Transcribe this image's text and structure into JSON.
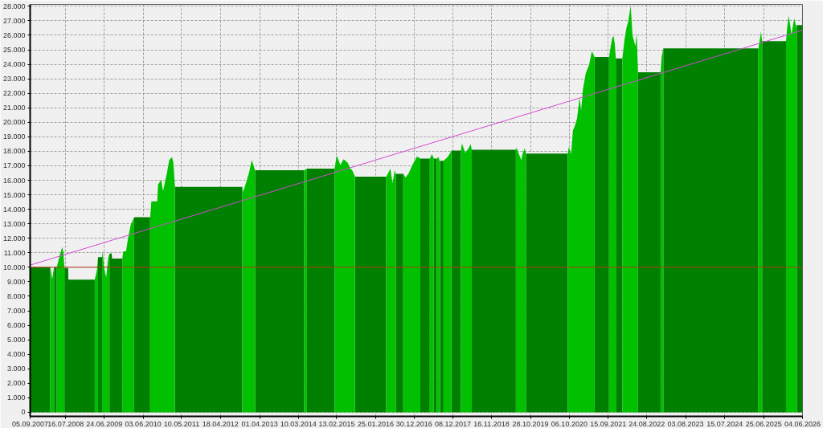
{
  "chart_data": {
    "type": "area",
    "x": [
      "2007-09-05",
      "2008-03-02",
      "2008-03-19",
      "2008-04-04",
      "2008-04-16",
      "2008-04-28",
      "2008-05-14",
      "2008-05-28",
      "2008-06-16",
      "2008-06-26",
      "2008-07-05",
      "2008-08-07",
      "2008-08-09",
      "2009-03-31",
      "2009-04-19",
      "2009-04-29",
      "2009-05-17",
      "2009-06-04",
      "2009-06-09",
      "2009-06-21",
      "2009-07-10",
      "2009-07-27",
      "2009-08-08",
      "2009-08-28",
      "2009-08-31",
      "2009-11-30",
      "2009-12-09",
      "2010-01-02",
      "2010-01-20",
      "2010-02-12",
      "2010-03-15",
      "2010-06-01",
      "2010-08-04",
      "2010-08-15",
      "2010-10-06",
      "2010-10-13",
      "2010-11-10",
      "2010-11-26",
      "2010-12-11",
      "2011-01-02",
      "2011-01-20",
      "2011-02-14",
      "2011-02-26",
      "2011-03-12",
      "2012-01-01",
      "2012-10-29",
      "2012-11-05",
      "2012-12-08",
      "2012-12-30",
      "2013-01-20",
      "2013-02-03",
      "2013-02-19",
      "2013-09-01",
      "2014-05-01",
      "2014-05-13",
      "2014-05-25",
      "2014-09-15",
      "2015-01-25",
      "2015-02-13",
      "2015-03-17",
      "2015-04-15",
      "2015-05-21",
      "2015-06-14",
      "2015-06-30",
      "2015-07-25",
      "2015-12-01",
      "2016-04-27",
      "2016-05-14",
      "2016-06-02",
      "2016-06-22",
      "2016-07-11",
      "2016-07-20",
      "2016-08-22",
      "2016-09-25",
      "2016-10-15",
      "2016-11-13",
      "2016-12-05",
      "2017-01-01",
      "2017-01-24",
      "2017-02-23",
      "2017-04-05",
      "2017-05-18",
      "2017-06-06",
      "2017-06-23",
      "2017-07-06",
      "2017-07-19",
      "2017-08-05",
      "2017-08-12",
      "2017-08-17",
      "2017-09-01",
      "2017-09-17",
      "2017-10-16",
      "2017-11-04",
      "2017-11-26",
      "2018-01-07",
      "2018-02-18",
      "2018-02-27",
      "2018-03-28",
      "2018-04-26",
      "2018-05-15",
      "2018-05-25",
      "2018-12-01",
      "2019-06-20",
      "2019-06-27",
      "2019-07-17",
      "2019-08-07",
      "2019-08-21",
      "2019-09-07",
      "2019-09-17",
      "2020-03-01",
      "2020-09-22",
      "2020-10-02",
      "2020-10-21",
      "2020-11-07",
      "2020-11-24",
      "2020-12-13",
      "2021-01-06",
      "2021-01-18",
      "2021-02-04",
      "2021-02-28",
      "2021-03-31",
      "2021-04-24",
      "2021-05-18",
      "2021-07-20",
      "2021-09-23",
      "2021-10-09",
      "2021-10-21",
      "2021-11-02",
      "2021-11-13",
      "2021-11-22",
      "2021-12-20",
      "2022-01-19",
      "2022-02-07",
      "2022-02-24",
      "2022-03-13",
      "2022-04-03",
      "2022-04-19",
      "2022-05-14",
      "2022-05-26",
      "2022-06-07",
      "2022-09-15",
      "2022-12-24",
      "2023-01-02",
      "2023-01-17",
      "2024-03-15",
      "2025-05-09",
      "2025-06-01",
      "2025-06-11",
      "2025-09-10",
      "2026-01-09",
      "2026-01-20",
      "2026-02-02",
      "2026-02-13",
      "2026-02-26",
      "2026-03-22",
      "2026-04-10",
      "2026-04-14",
      "2026-06-04"
    ],
    "series": [
      {
        "color": "#008000",
        "values": [
          10000,
          10000,
          null,
          10000,
          10000,
          10000,
          null,
          null,
          null,
          null,
          9950,
          9950,
          9150,
          9150,
          null,
          10700,
          10700,
          10700,
          null,
          null,
          null,
          null,
          10950,
          10950,
          10600,
          10600,
          null,
          null,
          null,
          null,
          13450,
          13450,
          13450,
          null,
          null,
          null,
          null,
          null,
          null,
          null,
          null,
          null,
          null,
          15550,
          15550,
          15550,
          null,
          null,
          null,
          null,
          null,
          16700,
          16700,
          16700,
          null,
          16800,
          16800,
          16800,
          null,
          null,
          null,
          null,
          null,
          null,
          16250,
          16250,
          16250,
          null,
          null,
          null,
          null,
          16450,
          16450,
          16450,
          null,
          null,
          null,
          null,
          null,
          17500,
          17500,
          17500,
          null,
          17500,
          17500,
          17500,
          null,
          null,
          17350,
          17350,
          17350,
          null,
          null,
          18050,
          18050,
          18050,
          null,
          null,
          null,
          null,
          18100,
          18100,
          18100,
          null,
          null,
          null,
          null,
          null,
          17850,
          17850,
          17850,
          null,
          null,
          null,
          null,
          null,
          null,
          null,
          null,
          null,
          null,
          null,
          24500,
          24500,
          24500,
          null,
          null,
          null,
          null,
          24400,
          24400,
          24400,
          null,
          null,
          null,
          null,
          null,
          null,
          null,
          23450,
          23450,
          23450,
          null,
          25100,
          25100,
          25100,
          null,
          25600,
          25600,
          25600,
          null,
          null,
          null,
          null,
          null,
          null,
          26700,
          26700
        ]
      },
      {
        "color": "#00c000",
        "values": [
          null,
          10000,
          9200,
          10000,
          null,
          10000,
          10500,
          10900,
          11400,
          11000,
          9950,
          null,
          null,
          9150,
          9800,
          10700,
          null,
          10700,
          11100,
          10000,
          9300,
          10600,
          10950,
          null,
          null,
          10600,
          11100,
          11100,
          12000,
          12900,
          13450,
          null,
          13450,
          14550,
          14550,
          15700,
          16050,
          15250,
          15800,
          16600,
          17400,
          17600,
          17200,
          15550,
          null,
          15550,
          15200,
          16000,
          16600,
          17400,
          17100,
          16700,
          null,
          16700,
          16750,
          16800,
          null,
          16800,
          17700,
          17050,
          17450,
          17200,
          16800,
          16700,
          16250,
          null,
          16250,
          16500,
          16800,
          15800,
          16700,
          16450,
          null,
          16450,
          16200,
          16500,
          16900,
          17300,
          17650,
          17500,
          null,
          17500,
          17800,
          17500,
          null,
          17500,
          17600,
          17350,
          17350,
          null,
          17350,
          17550,
          17750,
          18050,
          null,
          18050,
          18550,
          17900,
          18200,
          18500,
          18100,
          null,
          18100,
          18250,
          17800,
          17400,
          17900,
          18200,
          17850,
          null,
          17850,
          18300,
          17800,
          19450,
          19750,
          20250,
          21750,
          20800,
          22300,
          23350,
          24000,
          24900,
          24500,
          null,
          24500,
          25300,
          25800,
          25950,
          25400,
          24400,
          null,
          24400,
          25700,
          26500,
          27000,
          28050,
          26000,
          25250,
          26100,
          23450,
          null,
          23450,
          24500,
          25100,
          null,
          25100,
          26250,
          25600,
          null,
          25600,
          26600,
          27350,
          26800,
          26050,
          27150,
          26600,
          26700,
          null
        ]
      },
      {
        "type": "line",
        "color": "#d24bd2",
        "x": [
          "2007-09-05",
          "2026-06-04"
        ],
        "values": [
          10150,
          26350
        ]
      }
    ],
    "xlim": [
      "2007-09-05",
      "2026-06-04"
    ],
    "xticks": [
      {
        "value": "2007-09-05",
        "label": "05.09.2007"
      },
      {
        "value": "2008-07-16",
        "label": "16.07.2008"
      },
      {
        "value": "2009-06-24",
        "label": "24.06.2009"
      },
      {
        "value": "2010-06-03",
        "label": "03.06.2010"
      },
      {
        "value": "2011-05-10",
        "label": "10.05.2011"
      },
      {
        "value": "2012-04-18",
        "label": "18.04.2012"
      },
      {
        "value": "2013-04-01",
        "label": "01.04.2013"
      },
      {
        "value": "2014-03-10",
        "label": "10.03.2014"
      },
      {
        "value": "2015-02-13",
        "label": "13.02.2015"
      },
      {
        "value": "2016-01-25",
        "label": "25.01.2016"
      },
      {
        "value": "2016-12-30",
        "label": "30.12.2016"
      },
      {
        "value": "2017-12-08",
        "label": "08.12.2017"
      },
      {
        "value": "2018-11-16",
        "label": "16.11.2018"
      },
      {
        "value": "2019-10-28",
        "label": "28.10.2019"
      },
      {
        "value": "2020-10-06",
        "label": "06.10.2020"
      },
      {
        "value": "2021-09-15",
        "label": "15.09.2021"
      },
      {
        "value": "2022-08-24",
        "label": "24.08.2022"
      },
      {
        "value": "2023-08-03",
        "label": "03.08.2023"
      },
      {
        "value": "2024-07-15",
        "label": "15.07.2024"
      },
      {
        "value": "2025-06-25",
        "label": "25.06.2025"
      },
      {
        "value": "2026-06-04",
        "label": "04.06.2026"
      }
    ],
    "ylim": [
      -280,
      28130
    ],
    "yticks": [
      0,
      {
        "value": 1000,
        "label": "1.000"
      },
      {
        "value": 2000,
        "label": "2.000"
      },
      {
        "value": 3000,
        "label": "3.000"
      },
      {
        "value": 4000,
        "label": "4.000"
      },
      {
        "value": 5000,
        "label": "5.000"
      },
      {
        "value": 6000,
        "label": "6.000"
      },
      {
        "value": 7000,
        "label": "7.000"
      },
      {
        "value": 8000,
        "label": "8.000"
      },
      {
        "value": 9000,
        "label": "9.000"
      },
      {
        "value": 10000,
        "label": "10.000"
      },
      {
        "value": 11000,
        "label": "11.000"
      },
      {
        "value": 12000,
        "label": "12.000"
      },
      {
        "value": 13000,
        "label": "13.000"
      },
      {
        "value": 14000,
        "label": "14.000"
      },
      {
        "value": 15000,
        "label": "15.000"
      },
      {
        "value": 16000,
        "label": "16.000"
      },
      {
        "value": 17000,
        "label": "17.000"
      },
      {
        "value": 18000,
        "label": "18.000"
      },
      {
        "value": 19000,
        "label": "19.000"
      },
      {
        "value": 20000,
        "label": "20.000"
      },
      {
        "value": 21000,
        "label": "21.000"
      },
      {
        "value": 22000,
        "label": "22.000"
      },
      {
        "value": 23000,
        "label": "23.000"
      },
      {
        "value": 24000,
        "label": "24.000"
      },
      {
        "value": 25000,
        "label": "25.000"
      },
      {
        "value": 26000,
        "label": "26.000"
      },
      {
        "value": 27000,
        "label": "27.000"
      },
      {
        "value": 28000,
        "label": "28.000"
      }
    ],
    "ref_lines": [
      {
        "axis": "y",
        "value": 10000,
        "color": "#b83a1e"
      }
    ],
    "grid": true
  }
}
